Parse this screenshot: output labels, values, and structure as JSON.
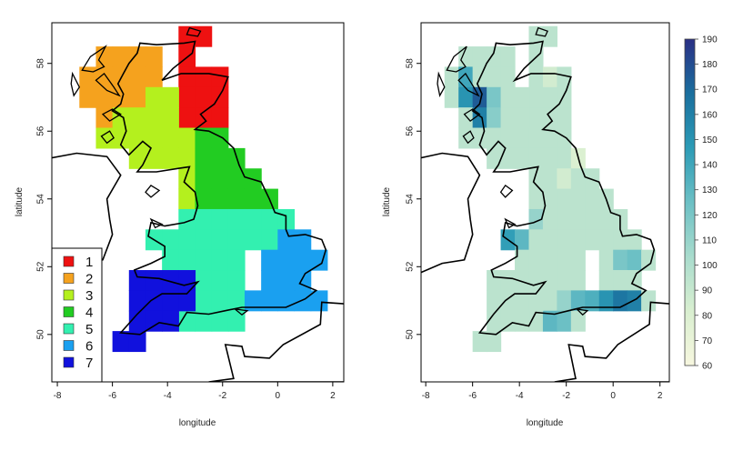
{
  "left_map": {
    "xlabel": "longitude",
    "ylabel": "latitude",
    "x_ticks": [
      "-8",
      "-6",
      "-4",
      "-2",
      "0",
      "2"
    ],
    "y_ticks": [
      "50",
      "52",
      "54",
      "56",
      "58"
    ],
    "xlim": [
      -8.2,
      2.4
    ],
    "ylim": [
      48.6,
      59.2
    ],
    "legend": [
      {
        "label": "1",
        "color": "#ee1111"
      },
      {
        "label": "2",
        "color": "#f5a21e"
      },
      {
        "label": "3",
        "color": "#b4f01e"
      },
      {
        "label": "4",
        "color": "#22cc22"
      },
      {
        "label": "5",
        "color": "#33f0b0"
      },
      {
        "label": "6",
        "color": "#1aa0f0"
      },
      {
        "label": "7",
        "color": "#1111dd"
      }
    ]
  },
  "right_map": {
    "xlabel": "longitude",
    "ylabel": "latitude",
    "x_ticks": [
      "-8",
      "-6",
      "-4",
      "-2",
      "0",
      "2"
    ],
    "y_ticks": [
      "50",
      "52",
      "54",
      "56",
      "58"
    ],
    "colorbar": {
      "min": 60,
      "max": 190,
      "ticks": [
        "60",
        "70",
        "80",
        "90",
        "100",
        "110",
        "120",
        "130",
        "140",
        "150",
        "160",
        "170",
        "180",
        "190"
      ],
      "colors": [
        "#f7f7df",
        "#d9efd0",
        "#a9dccd",
        "#6cc0c5",
        "#2c9bb6",
        "#1a6f9e",
        "#2a2f85"
      ]
    }
  },
  "chart_data": {
    "type": "heatmap",
    "grid_cell_deg": 0.6,
    "regions": [
      {
        "region": "1",
        "cells": [
          [
            -3.3,
            58.8
          ],
          [
            -2.7,
            58.8
          ],
          [
            -3.3,
            58.2
          ],
          [
            -3.3,
            57.6
          ],
          [
            -2.7,
            57.6
          ],
          [
            -2.1,
            57.6
          ],
          [
            -3.3,
            57.0
          ],
          [
            -2.7,
            57.0
          ],
          [
            -2.1,
            57.0
          ],
          [
            -3.3,
            56.4
          ],
          [
            -2.7,
            56.4
          ],
          [
            -2.1,
            56.4
          ]
        ]
      },
      {
        "region": "2",
        "cells": [
          [
            -6.3,
            58.2
          ],
          [
            -5.7,
            58.2
          ],
          [
            -5.1,
            58.2
          ],
          [
            -4.5,
            58.2
          ],
          [
            -6.9,
            57.6
          ],
          [
            -6.3,
            57.6
          ],
          [
            -5.7,
            57.6
          ],
          [
            -5.1,
            57.6
          ],
          [
            -4.5,
            57.6
          ],
          [
            -6.9,
            57.0
          ],
          [
            -6.3,
            57.0
          ],
          [
            -5.7,
            57.0
          ],
          [
            -5.1,
            57.0
          ],
          [
            -6.3,
            56.4
          ]
        ]
      },
      {
        "region": "3",
        "cells": [
          [
            -4.5,
            57.0
          ],
          [
            -3.9,
            57.0
          ],
          [
            -5.7,
            56.4
          ],
          [
            -5.1,
            56.4
          ],
          [
            -4.5,
            56.4
          ],
          [
            -3.9,
            56.4
          ],
          [
            -6.3,
            55.8
          ],
          [
            -5.7,
            55.8
          ],
          [
            -5.1,
            55.8
          ],
          [
            -4.5,
            55.8
          ],
          [
            -3.9,
            55.8
          ],
          [
            -3.3,
            55.8
          ],
          [
            -5.1,
            55.2
          ],
          [
            -4.5,
            55.2
          ],
          [
            -3.9,
            55.2
          ],
          [
            -3.3,
            55.2
          ],
          [
            -3.3,
            54.6
          ],
          [
            -3.3,
            54.0
          ]
        ]
      },
      {
        "region": "4",
        "cells": [
          [
            -2.7,
            55.8
          ],
          [
            -2.1,
            55.8
          ],
          [
            -2.7,
            55.2
          ],
          [
            -2.1,
            55.2
          ],
          [
            -1.5,
            55.2
          ],
          [
            -2.7,
            54.6
          ],
          [
            -2.1,
            54.6
          ],
          [
            -1.5,
            54.6
          ],
          [
            -0.9,
            54.6
          ],
          [
            -2.7,
            54.0
          ],
          [
            -2.1,
            54.0
          ],
          [
            -1.5,
            54.0
          ],
          [
            -0.9,
            54.0
          ],
          [
            -0.3,
            54.0
          ]
        ]
      },
      {
        "region": "5",
        "cells": [
          [
            -3.3,
            53.4
          ],
          [
            -2.7,
            53.4
          ],
          [
            -2.1,
            53.4
          ],
          [
            -1.5,
            53.4
          ],
          [
            -0.9,
            53.4
          ],
          [
            -0.3,
            53.4
          ],
          [
            0.3,
            53.4
          ],
          [
            -4.5,
            52.8
          ],
          [
            -3.9,
            52.8
          ],
          [
            -3.3,
            52.8
          ],
          [
            -2.7,
            52.8
          ],
          [
            -2.1,
            52.8
          ],
          [
            -1.5,
            52.8
          ],
          [
            -0.9,
            52.8
          ],
          [
            -0.3,
            52.8
          ],
          [
            -3.9,
            52.2
          ],
          [
            -3.3,
            52.2
          ],
          [
            -2.7,
            52.2
          ],
          [
            -2.1,
            52.2
          ],
          [
            -1.5,
            52.2
          ],
          [
            -2.7,
            51.6
          ],
          [
            -2.1,
            51.6
          ],
          [
            -1.5,
            51.6
          ],
          [
            -2.7,
            51.0
          ],
          [
            -2.1,
            51.0
          ],
          [
            -1.5,
            51.0
          ],
          [
            -3.3,
            50.4
          ],
          [
            -2.7,
            50.4
          ],
          [
            -2.1,
            50.4
          ],
          [
            -1.5,
            50.4
          ]
        ]
      },
      {
        "region": "6",
        "cells": [
          [
            0.3,
            52.8
          ],
          [
            0.9,
            52.8
          ],
          [
            -0.3,
            52.2
          ],
          [
            0.3,
            52.2
          ],
          [
            0.9,
            52.2
          ],
          [
            1.5,
            52.2
          ],
          [
            -0.3,
            51.6
          ],
          [
            0.3,
            51.6
          ],
          [
            0.9,
            51.6
          ],
          [
            -0.9,
            51.0
          ],
          [
            -0.3,
            51.0
          ],
          [
            0.3,
            51.0
          ],
          [
            0.9,
            51.0
          ],
          [
            1.5,
            51.0
          ]
        ]
      },
      {
        "region": "7",
        "cells": [
          [
            -5.1,
            51.6
          ],
          [
            -4.5,
            51.6
          ],
          [
            -3.9,
            51.6
          ],
          [
            -3.3,
            51.6
          ],
          [
            -5.1,
            51.0
          ],
          [
            -4.5,
            51.0
          ],
          [
            -3.9,
            51.0
          ],
          [
            -3.3,
            51.0
          ],
          [
            -5.1,
            50.4
          ],
          [
            -4.5,
            50.4
          ],
          [
            -3.9,
            50.4
          ],
          [
            -5.7,
            49.8
          ],
          [
            -5.1,
            49.8
          ]
        ]
      }
    ],
    "values": [
      {
        "lon": -6.3,
        "lat": 57.6,
        "v": 140
      },
      {
        "lon": -5.7,
        "lat": 57.0,
        "v": 175
      },
      {
        "lon": -5.7,
        "lat": 56.4,
        "v": 160
      },
      {
        "lon": -6.3,
        "lat": 57.0,
        "v": 150
      },
      {
        "lon": -5.1,
        "lat": 57.0,
        "v": 120
      },
      {
        "lon": -5.1,
        "lat": 56.4,
        "v": 115
      },
      {
        "lon": -4.5,
        "lat": 52.8,
        "v": 145
      },
      {
        "lon": -3.9,
        "lat": 52.8,
        "v": 130
      },
      {
        "lon": -4.5,
        "lat": 52.2,
        "v": 125
      },
      {
        "lon": -3.3,
        "lat": 53.4,
        "v": 110
      },
      {
        "lon": -2.1,
        "lat": 54.6,
        "v": 85
      },
      {
        "lon": -1.5,
        "lat": 55.2,
        "v": 80
      },
      {
        "lon": -0.3,
        "lat": 51.0,
        "v": 150
      },
      {
        "lon": 0.3,
        "lat": 51.0,
        "v": 165
      },
      {
        "lon": 0.9,
        "lat": 51.0,
        "v": 160
      },
      {
        "lon": -0.9,
        "lat": 51.0,
        "v": 135
      },
      {
        "lon": -1.5,
        "lat": 51.0,
        "v": 130
      },
      {
        "lon": -2.1,
        "lat": 51.0,
        "v": 110
      },
      {
        "lon": -2.7,
        "lat": 50.4,
        "v": 130
      },
      {
        "lon": -2.1,
        "lat": 50.4,
        "v": 125
      },
      {
        "lon": 0.9,
        "lat": 52.2,
        "v": 125
      },
      {
        "lon": 0.3,
        "lat": 52.2,
        "v": 120
      },
      {
        "lon": -3.3,
        "lat": 58.2,
        "v": 95
      },
      {
        "lon": -2.7,
        "lat": 57.6,
        "v": 85
      }
    ],
    "default_value": 95
  }
}
